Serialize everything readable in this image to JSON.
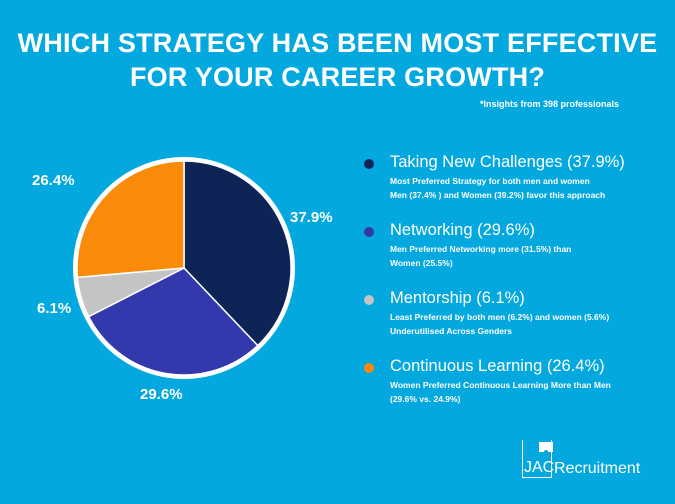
{
  "title_line1": "WHICH STRATEGY HAS BEEN MOST EFFECTIVE",
  "title_line2": "FOR YOUR CAREER GROWTH?",
  "note": "*Insights from 398 professionals",
  "chart_data": {
    "type": "pie",
    "title": "Which strategy has been most effective for your career growth?",
    "categories": [
      "Taking New Challenges",
      "Networking",
      "Mentorship",
      "Continuous Learning"
    ],
    "values": [
      37.9,
      29.6,
      6.1,
      26.4
    ],
    "data_labels": [
      "37.9%",
      "29.6%",
      "6.1%",
      "26.4%"
    ],
    "colors": [
      "#0e2456",
      "#3338ad",
      "#c4c4c4",
      "#f98a0a"
    ],
    "legend_placement": "right"
  },
  "legend": [
    {
      "title": "Taking New Challenges (37.9%)",
      "line1": "Most Preferred Strategy for both men and women",
      "line2": "Men (37.4% ) and Women (39.2%) favor this approach"
    },
    {
      "title": "Networking (29.6%)",
      "line1": "Men Preferred Networking more (31.5%) than",
      "line2": "Women (25.5%)"
    },
    {
      "title": "Mentorship (6.1%)",
      "line1": "Least Preferred by both men (6.2%) and women (5.6%)",
      "line2": "Underutilised Across Genders"
    },
    {
      "title": "Continuous Learning (26.4%)",
      "line1": "Women Preferred Continuous Learning More than Men",
      "line2": "(29.6% vs. 24.9%)"
    }
  ],
  "logo": {
    "jac": "JAC",
    "recruitment": "Recruitment"
  }
}
